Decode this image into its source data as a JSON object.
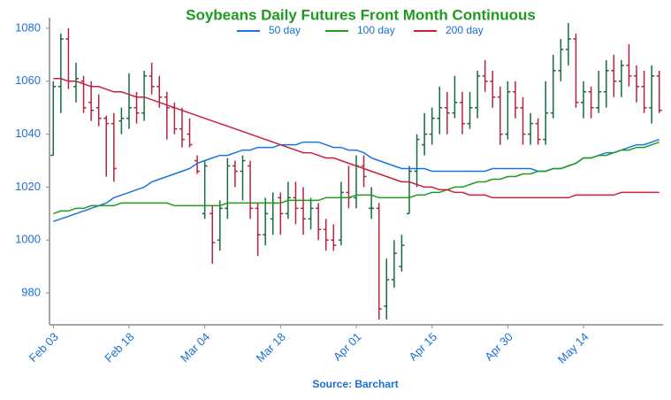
{
  "chart_data": {
    "type": "ohlc",
    "title": "Soybeans Daily Futures Front Month Continuous",
    "source": "Source: Barchart",
    "categories": [
      "Feb 03",
      null,
      null,
      null,
      null,
      null,
      null,
      null,
      null,
      null,
      "Feb 18",
      null,
      null,
      null,
      null,
      null,
      null,
      null,
      null,
      null,
      "Mar 04",
      null,
      null,
      null,
      null,
      null,
      null,
      null,
      null,
      null,
      "Mar 18",
      null,
      null,
      null,
      null,
      null,
      null,
      null,
      null,
      null,
      "Apr 01",
      null,
      null,
      null,
      null,
      null,
      null,
      null,
      null,
      null,
      "Apr 15",
      null,
      null,
      null,
      null,
      null,
      null,
      null,
      null,
      null,
      "Apr 30",
      null,
      null,
      null,
      null,
      null,
      null,
      null,
      null,
      null,
      "May 14",
      null,
      null,
      null,
      null,
      null,
      null,
      null,
      null,
      null,
      null
    ],
    "ohlc": {
      "open": [
        1032,
        1058,
        1076,
        1058,
        1060,
        1052,
        1050,
        1046,
        1044,
        1045,
        1046,
        1050,
        1048,
        1062,
        1058,
        1054,
        1050,
        1042,
        1040,
        1030,
        1010,
        1010,
        1000,
        1012,
        1028,
        1026,
        1028,
        1012,
        1002,
        1008,
        1016,
        1010,
        1016,
        1012,
        1008,
        1012,
        1004,
        1000,
        1000,
        1018,
        1016,
        1028,
        1012,
        1012,
        975,
        985,
        990,
        1010,
        1026,
        1036,
        1040,
        1046,
        1050,
        1048,
        1052,
        1044,
        1050,
        1062,
        1060,
        1054,
        1040,
        1056,
        1050,
        1040,
        1044,
        1038,
        1048,
        1064,
        1072,
        1076,
        1052,
        1056,
        1050,
        1056,
        1064,
        1060,
        1066,
        1062,
        1058,
        1050,
        1062
      ],
      "high": [
        1060,
        1078,
        1080,
        1067,
        1062,
        1060,
        1055,
        1047,
        1048,
        1050,
        1063,
        1056,
        1064,
        1067,
        1062,
        1056,
        1052,
        1050,
        1046,
        1032,
        1030,
        1013,
        1015,
        1031,
        1030,
        1032,
        1030,
        1014,
        1016,
        1018,
        1018,
        1022,
        1022,
        1020,
        1016,
        1014,
        1008,
        1006,
        1022,
        1028,
        1032,
        1032,
        1020,
        1014,
        993,
        1000,
        1002,
        1028,
        1040,
        1048,
        1050,
        1058,
        1056,
        1062,
        1056,
        1056,
        1064,
        1068,
        1064,
        1058,
        1060,
        1060,
        1054,
        1048,
        1046,
        1060,
        1070,
        1076,
        1082,
        1078,
        1060,
        1058,
        1064,
        1068,
        1070,
        1068,
        1074,
        1066,
        1064,
        1066,
        1064
      ],
      "low": [
        1032,
        1048,
        1057,
        1052,
        1048,
        1045,
        1043,
        1024,
        1022,
        1040,
        1042,
        1044,
        1045,
        1055,
        1050,
        1038,
        1040,
        1035,
        1035,
        1025,
        1008,
        991,
        996,
        1008,
        1020,
        1015,
        1008,
        994,
        998,
        1002,
        1002,
        1008,
        1006,
        1002,
        1004,
        1000,
        996,
        996,
        998,
        1012,
        1012,
        1020,
        1008,
        970,
        970,
        982,
        988,
        1010,
        1020,
        1032,
        1036,
        1040,
        1040,
        1046,
        1040,
        1042,
        1046,
        1056,
        1050,
        1036,
        1038,
        1046,
        1036,
        1036,
        1036,
        1036,
        1046,
        1060,
        1066,
        1050,
        1046,
        1046,
        1048,
        1050,
        1054,
        1054,
        1058,
        1052,
        1048,
        1044,
        1048
      ],
      "close": [
        1058,
        1076,
        1060,
        1061,
        1050,
        1049,
        1046,
        1044,
        1027,
        1046,
        1050,
        1048,
        1062,
        1058,
        1054,
        1050,
        1042,
        1038,
        1036,
        1026,
        1028,
        999,
        1012,
        1028,
        1026,
        1030,
        1012,
        1002,
        1010,
        1014,
        1010,
        1016,
        1012,
        1008,
        1012,
        1004,
        1000,
        998,
        1018,
        1016,
        1028,
        1024,
        1012,
        974,
        985,
        995,
        998,
        1026,
        1038,
        1040,
        1046,
        1050,
        1048,
        1052,
        1044,
        1050,
        1062,
        1060,
        1054,
        1040,
        1056,
        1050,
        1040,
        1044,
        1038,
        1048,
        1064,
        1072,
        1076,
        1052,
        1056,
        1050,
        1056,
        1064,
        1060,
        1066,
        1062,
        1058,
        1050,
        1062,
        1049
      ]
    },
    "up_color": "#176b3c",
    "down_color": "#b3243c",
    "series": [
      {
        "name": "50 day",
        "color": "#1a73e0",
        "values": [
          1007,
          1008,
          1009,
          1010,
          1011,
          1012,
          1013,
          1014,
          1016,
          1017,
          1018,
          1019,
          1020,
          1022,
          1023,
          1024,
          1025,
          1026,
          1027,
          1029,
          1030,
          1031,
          1032,
          1032,
          1033,
          1034,
          1034,
          1035,
          1035,
          1035,
          1036,
          1036,
          1036,
          1037,
          1037,
          1037,
          1036,
          1035,
          1035,
          1034,
          1034,
          1033,
          1031,
          1030,
          1029,
          1028,
          1027,
          1027,
          1027,
          1027,
          1026,
          1026,
          1026,
          1026,
          1026,
          1026,
          1026,
          1026,
          1027,
          1027,
          1027,
          1027,
          1027,
          1027,
          1026,
          1026,
          1027,
          1027,
          1028,
          1029,
          1031,
          1031,
          1032,
          1033,
          1033,
          1034,
          1035,
          1036,
          1036,
          1037,
          1038
        ]
      },
      {
        "name": "100 day",
        "color": "#1e9a1e",
        "values": [
          1010,
          1011,
          1011,
          1012,
          1012,
          1013,
          1013,
          1013,
          1013,
          1014,
          1014,
          1014,
          1014,
          1014,
          1014,
          1014,
          1013,
          1013,
          1013,
          1013,
          1013,
          1013,
          1013,
          1014,
          1014,
          1014,
          1014,
          1014,
          1014,
          1014,
          1014,
          1015,
          1015,
          1015,
          1015,
          1015,
          1016,
          1016,
          1016,
          1016,
          1017,
          1017,
          1017,
          1016,
          1016,
          1016,
          1016,
          1016,
          1017,
          1017,
          1018,
          1018,
          1019,
          1020,
          1020,
          1021,
          1022,
          1022,
          1023,
          1023,
          1024,
          1024,
          1025,
          1025,
          1026,
          1026,
          1027,
          1027,
          1028,
          1029,
          1031,
          1031,
          1032,
          1032,
          1033,
          1034,
          1034,
          1035,
          1035,
          1036,
          1037
        ]
      },
      {
        "name": "200 day",
        "color": "#c8203e",
        "values": [
          1061,
          1061,
          1060,
          1060,
          1059,
          1058,
          1058,
          1057,
          1056,
          1056,
          1055,
          1054,
          1054,
          1053,
          1052,
          1051,
          1050,
          1049,
          1048,
          1047,
          1046,
          1045,
          1044,
          1043,
          1042,
          1041,
          1040,
          1039,
          1038,
          1037,
          1036,
          1035,
          1034,
          1033,
          1033,
          1032,
          1031,
          1031,
          1030,
          1029,
          1028,
          1027,
          1026,
          1025,
          1024,
          1023,
          1022,
          1022,
          1021,
          1020,
          1020,
          1019,
          1019,
          1018,
          1018,
          1017,
          1017,
          1017,
          1016,
          1016,
          1016,
          1016,
          1016,
          1016,
          1016,
          1016,
          1016,
          1016,
          1016,
          1017,
          1017,
          1017,
          1017,
          1017,
          1017,
          1018,
          1018,
          1018,
          1018,
          1018,
          1018
        ]
      }
    ],
    "ylim": [
      968,
      1084
    ],
    "yticks": [
      980,
      1000,
      1020,
      1040,
      1060,
      1080
    ],
    "legend": "top",
    "grid": false
  }
}
